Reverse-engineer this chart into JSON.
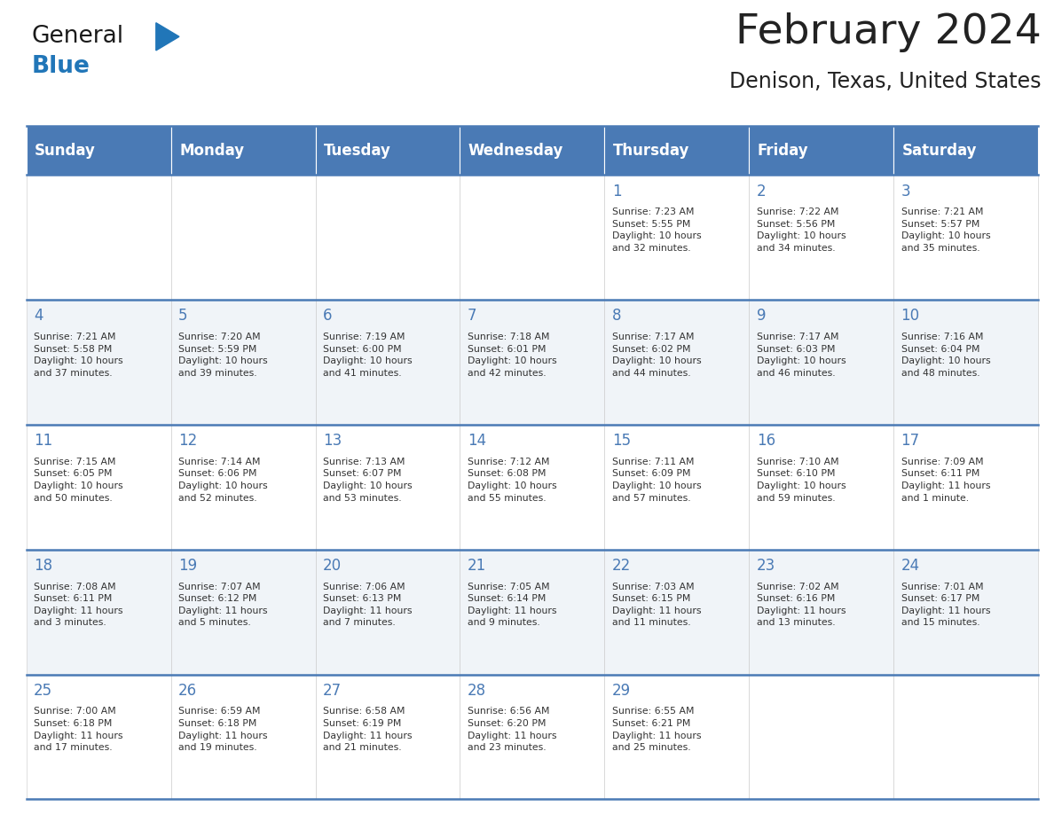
{
  "title": "February 2024",
  "subtitle": "Denison, Texas, United States",
  "header_color": "#4a7ab5",
  "header_text_color": "#FFFFFF",
  "cell_bg_light": "#f0f4f8",
  "cell_bg_white": "#FFFFFF",
  "text_color": "#222222",
  "info_text_color": "#333333",
  "day_num_color": "#4a7ab5",
  "border_color": "#4a7ab5",
  "days_of_week": [
    "Sunday",
    "Monday",
    "Tuesday",
    "Wednesday",
    "Thursday",
    "Friday",
    "Saturday"
  ],
  "logo_general_color": "#1a1a1a",
  "logo_blue_color": "#2176b8",
  "calendar_data": [
    [
      {
        "day": "",
        "info": ""
      },
      {
        "day": "",
        "info": ""
      },
      {
        "day": "",
        "info": ""
      },
      {
        "day": "",
        "info": ""
      },
      {
        "day": "1",
        "info": "Sunrise: 7:23 AM\nSunset: 5:55 PM\nDaylight: 10 hours\nand 32 minutes."
      },
      {
        "day": "2",
        "info": "Sunrise: 7:22 AM\nSunset: 5:56 PM\nDaylight: 10 hours\nand 34 minutes."
      },
      {
        "day": "3",
        "info": "Sunrise: 7:21 AM\nSunset: 5:57 PM\nDaylight: 10 hours\nand 35 minutes."
      }
    ],
    [
      {
        "day": "4",
        "info": "Sunrise: 7:21 AM\nSunset: 5:58 PM\nDaylight: 10 hours\nand 37 minutes."
      },
      {
        "day": "5",
        "info": "Sunrise: 7:20 AM\nSunset: 5:59 PM\nDaylight: 10 hours\nand 39 minutes."
      },
      {
        "day": "6",
        "info": "Sunrise: 7:19 AM\nSunset: 6:00 PM\nDaylight: 10 hours\nand 41 minutes."
      },
      {
        "day": "7",
        "info": "Sunrise: 7:18 AM\nSunset: 6:01 PM\nDaylight: 10 hours\nand 42 minutes."
      },
      {
        "day": "8",
        "info": "Sunrise: 7:17 AM\nSunset: 6:02 PM\nDaylight: 10 hours\nand 44 minutes."
      },
      {
        "day": "9",
        "info": "Sunrise: 7:17 AM\nSunset: 6:03 PM\nDaylight: 10 hours\nand 46 minutes."
      },
      {
        "day": "10",
        "info": "Sunrise: 7:16 AM\nSunset: 6:04 PM\nDaylight: 10 hours\nand 48 minutes."
      }
    ],
    [
      {
        "day": "11",
        "info": "Sunrise: 7:15 AM\nSunset: 6:05 PM\nDaylight: 10 hours\nand 50 minutes."
      },
      {
        "day": "12",
        "info": "Sunrise: 7:14 AM\nSunset: 6:06 PM\nDaylight: 10 hours\nand 52 minutes."
      },
      {
        "day": "13",
        "info": "Sunrise: 7:13 AM\nSunset: 6:07 PM\nDaylight: 10 hours\nand 53 minutes."
      },
      {
        "day": "14",
        "info": "Sunrise: 7:12 AM\nSunset: 6:08 PM\nDaylight: 10 hours\nand 55 minutes."
      },
      {
        "day": "15",
        "info": "Sunrise: 7:11 AM\nSunset: 6:09 PM\nDaylight: 10 hours\nand 57 minutes."
      },
      {
        "day": "16",
        "info": "Sunrise: 7:10 AM\nSunset: 6:10 PM\nDaylight: 10 hours\nand 59 minutes."
      },
      {
        "day": "17",
        "info": "Sunrise: 7:09 AM\nSunset: 6:11 PM\nDaylight: 11 hours\nand 1 minute."
      }
    ],
    [
      {
        "day": "18",
        "info": "Sunrise: 7:08 AM\nSunset: 6:11 PM\nDaylight: 11 hours\nand 3 minutes."
      },
      {
        "day": "19",
        "info": "Sunrise: 7:07 AM\nSunset: 6:12 PM\nDaylight: 11 hours\nand 5 minutes."
      },
      {
        "day": "20",
        "info": "Sunrise: 7:06 AM\nSunset: 6:13 PM\nDaylight: 11 hours\nand 7 minutes."
      },
      {
        "day": "21",
        "info": "Sunrise: 7:05 AM\nSunset: 6:14 PM\nDaylight: 11 hours\nand 9 minutes."
      },
      {
        "day": "22",
        "info": "Sunrise: 7:03 AM\nSunset: 6:15 PM\nDaylight: 11 hours\nand 11 minutes."
      },
      {
        "day": "23",
        "info": "Sunrise: 7:02 AM\nSunset: 6:16 PM\nDaylight: 11 hours\nand 13 minutes."
      },
      {
        "day": "24",
        "info": "Sunrise: 7:01 AM\nSunset: 6:17 PM\nDaylight: 11 hours\nand 15 minutes."
      }
    ],
    [
      {
        "day": "25",
        "info": "Sunrise: 7:00 AM\nSunset: 6:18 PM\nDaylight: 11 hours\nand 17 minutes."
      },
      {
        "day": "26",
        "info": "Sunrise: 6:59 AM\nSunset: 6:18 PM\nDaylight: 11 hours\nand 19 minutes."
      },
      {
        "day": "27",
        "info": "Sunrise: 6:58 AM\nSunset: 6:19 PM\nDaylight: 11 hours\nand 21 minutes."
      },
      {
        "day": "28",
        "info": "Sunrise: 6:56 AM\nSunset: 6:20 PM\nDaylight: 11 hours\nand 23 minutes."
      },
      {
        "day": "29",
        "info": "Sunrise: 6:55 AM\nSunset: 6:21 PM\nDaylight: 11 hours\nand 25 minutes."
      },
      {
        "day": "",
        "info": ""
      },
      {
        "day": "",
        "info": ""
      }
    ]
  ]
}
